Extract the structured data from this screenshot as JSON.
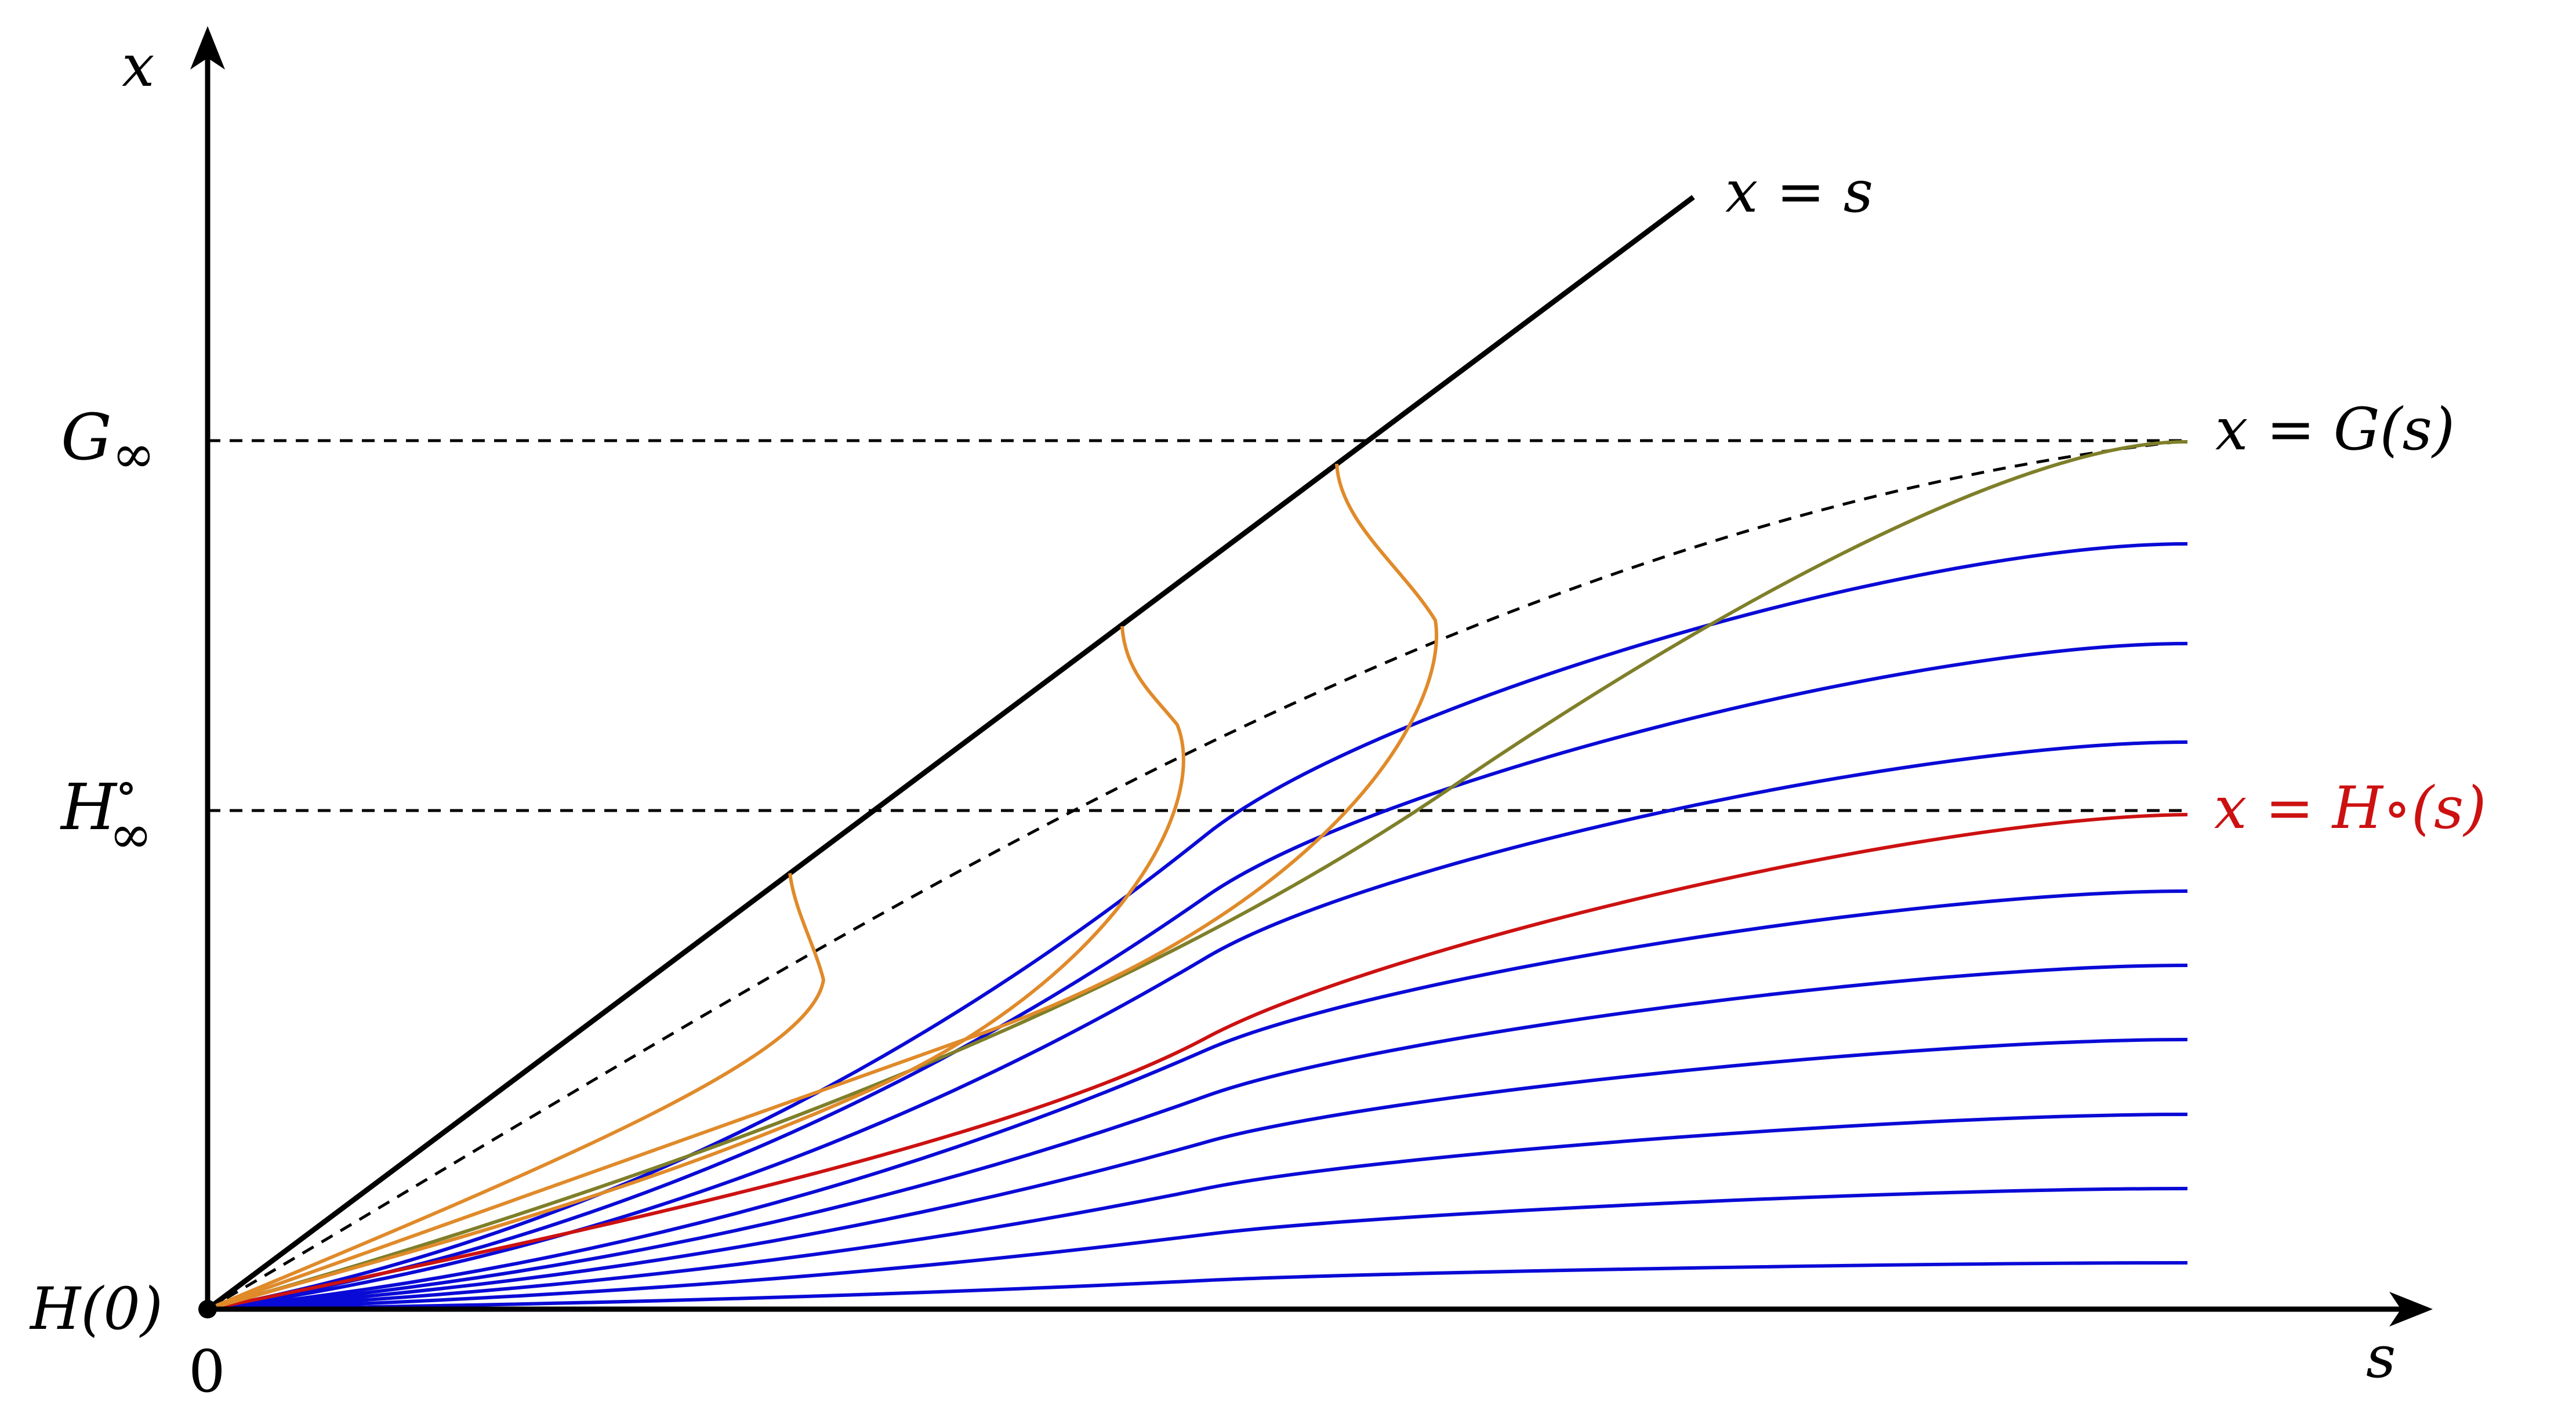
{
  "labels": {
    "x_axis_symbol": "s",
    "y_axis_symbol": "x",
    "origin": "0",
    "h0": "H(0)",
    "g_inf_main": "G",
    "g_inf_sub": "∞",
    "h_inf_main": "H",
    "h_inf_sup": "∘",
    "h_inf_sub": "∞",
    "line_diag": "x = s",
    "curve_g": "x = G(s)",
    "curve_h": "x = H∘(s)"
  },
  "colors": {
    "axis": "#000000",
    "diagonal": "#000000",
    "dashed": "#000000",
    "g_curve": "#7f7f2a",
    "h_curve": "#cc1111",
    "blue_curves": "#0a0ad6",
    "orange_curves": "#e08a2a"
  }
}
